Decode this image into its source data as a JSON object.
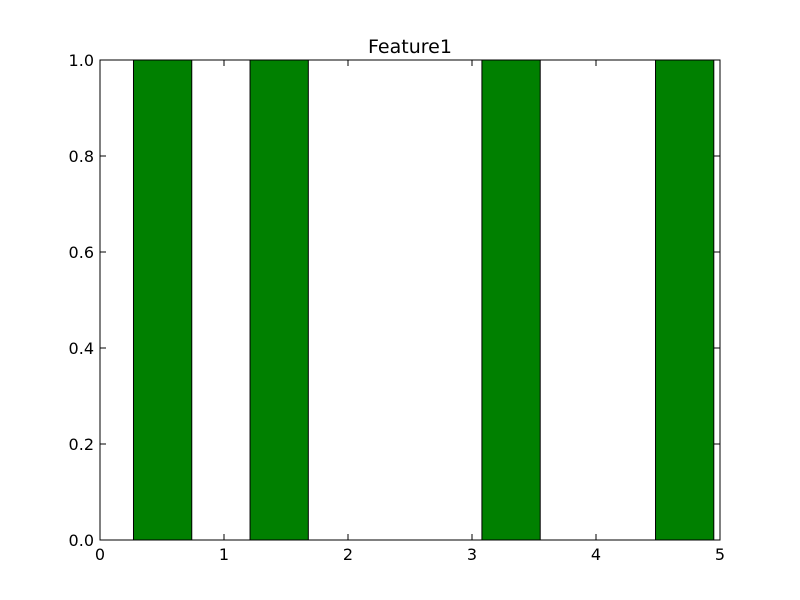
{
  "chart_data": {
    "type": "bar",
    "title": "Feature1",
    "xlabel": "",
    "ylabel": "",
    "xlim": [
      0,
      5
    ],
    "ylim": [
      0.0,
      1.0
    ],
    "xticks": [
      0,
      1,
      2,
      3,
      4,
      5
    ],
    "xtick_labels": [
      "0",
      "1",
      "2",
      "3",
      "4",
      "5"
    ],
    "yticks": [
      0.0,
      0.2,
      0.4,
      0.6,
      0.8,
      1.0
    ],
    "ytick_labels": [
      "0.0",
      "0.2",
      "0.4",
      "0.6",
      "0.8",
      "1.0"
    ],
    "grid": false,
    "bars": [
      {
        "x_start": 0.27,
        "x_end": 0.74,
        "value": 1.0
      },
      {
        "x_start": 1.21,
        "x_end": 1.68,
        "value": 1.0
      },
      {
        "x_start": 3.08,
        "x_end": 3.55,
        "value": 1.0
      },
      {
        "x_start": 4.48,
        "x_end": 4.95,
        "value": 1.0
      }
    ],
    "bar_color": "#008000",
    "edge_color": "#000000"
  }
}
